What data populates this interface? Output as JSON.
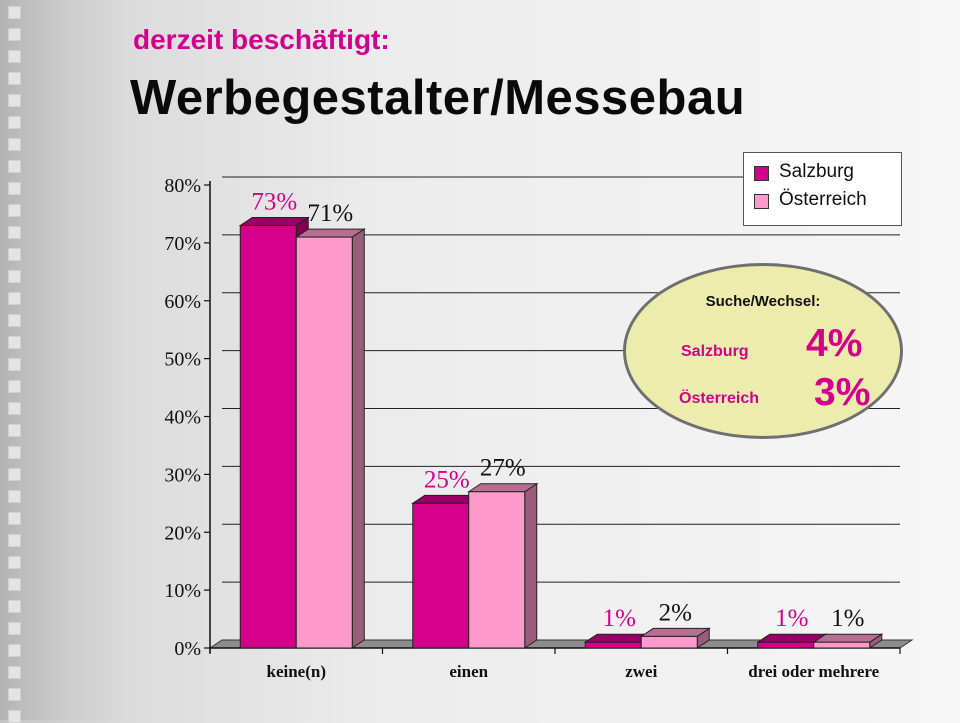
{
  "header": {
    "subtitle": "derzeit beschäftigt:",
    "title": "Werbegestalter/Messebau"
  },
  "chart_data": {
    "type": "bar",
    "categories": [
      "keine(n)",
      "einen",
      "zwei",
      "drei oder mehrere"
    ],
    "series": [
      {
        "name": "Salzburg",
        "values": [
          73,
          25,
          1,
          1
        ],
        "labels": [
          "73%",
          "25%",
          "1%",
          "1%"
        ],
        "color": "#d4008c",
        "label_color": "#d4008c"
      },
      {
        "name": "Österreich",
        "values": [
          71,
          27,
          2,
          1
        ],
        "labels": [
          "71%",
          "27%",
          "2%",
          "1%"
        ],
        "color": "#ff99cc",
        "label_color": "#111111"
      }
    ],
    "y_ticks": [
      "0%",
      "10%",
      "20%",
      "30%",
      "40%",
      "50%",
      "60%",
      "70%",
      "80%"
    ],
    "ylim": [
      0,
      80
    ],
    "grid": true,
    "legend_position": "top-right",
    "title": "",
    "xlabel": "",
    "ylabel": ""
  },
  "annotation": {
    "title": "Suche/Wechsel:",
    "rows": [
      {
        "label": "Salzburg",
        "value": "4%"
      },
      {
        "label": "Österreich",
        "value": "3%"
      }
    ],
    "fill_color": "#ecedac"
  }
}
